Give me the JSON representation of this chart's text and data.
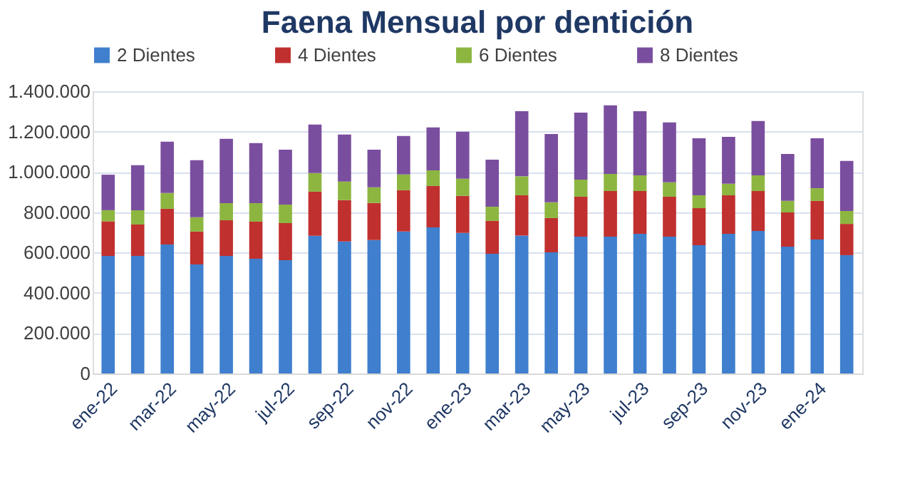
{
  "chart_data": {
    "type": "bar",
    "title": "Faena Mensual por dentición",
    "stacked": true,
    "legend": "top",
    "grid": "y",
    "categories": [
      "ene-22",
      null,
      "mar-22",
      null,
      "may-22",
      null,
      "jul-22",
      null,
      "sep-22",
      null,
      "nov-22",
      null,
      "ene-23",
      null,
      "mar-23",
      null,
      "may-23",
      null,
      "jul-23",
      null,
      "sep-23",
      null,
      "nov-23",
      null,
      "ene-24",
      null
    ],
    "ylim": [
      0,
      1400000
    ],
    "yticks": [
      0,
      {
        "value": 200000,
        "label": "200.000"
      },
      {
        "value": 400000,
        "label": "400.000"
      },
      {
        "value": 600000,
        "label": "600.000"
      },
      {
        "value": 800000,
        "label": "800.000"
      },
      {
        "value": 1000000,
        "label": "1.000.000"
      },
      {
        "value": 1200000,
        "label": "1.200.000"
      },
      {
        "value": 1400000,
        "label": "1.400.000"
      }
    ],
    "series": [
      {
        "name": "2 Dientes",
        "color": "#3f7fce",
        "values": [
          583000,
          583000,
          640000,
          541000,
          583000,
          569000,
          562000,
          683000,
          655000,
          662000,
          704000,
          725000,
          697000,
          594000,
          684000,
          601000,
          679000,
          679000,
          693000,
          679000,
          636000,
          693000,
          707000,
          629000,
          665000,
          587000
        ]
      },
      {
        "name": "4 Dientes",
        "color": "#c0302f",
        "values": [
          172000,
          156000,
          177000,
          163000,
          177000,
          184000,
          184000,
          219000,
          205000,
          184000,
          205000,
          205000,
          184000,
          163000,
          200000,
          170000,
          198000,
          226000,
          212000,
          198000,
          184000,
          191000,
          198000,
          170000,
          191000,
          155000
        ]
      },
      {
        "name": "6 Dientes",
        "color": "#8db640",
        "values": [
          55000,
          71000,
          78000,
          71000,
          85000,
          92000,
          92000,
          92000,
          92000,
          78000,
          78000,
          78000,
          85000,
          70000,
          94000,
          78000,
          85000,
          85000,
          78000,
          71000,
          64000,
          57000,
          78000,
          57000,
          63000,
          64000
        ]
      },
      {
        "name": "8 Dientes",
        "color": "#7a4e9f",
        "values": [
          176000,
          223000,
          255000,
          283000,
          319000,
          298000,
          272000,
          241000,
          233000,
          186000,
          191000,
          213000,
          233000,
          234000,
          323000,
          339000,
          332000,
          340000,
          318000,
          297000,
          283000,
          233000,
          269000,
          233000,
          248000,
          248000
        ]
      }
    ]
  }
}
